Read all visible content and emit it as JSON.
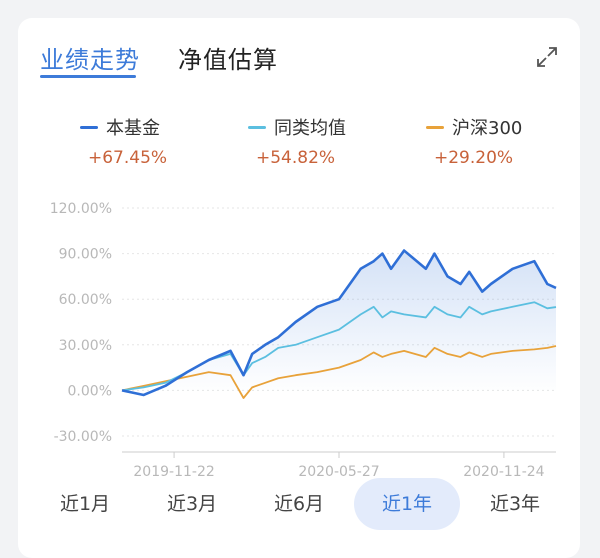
{
  "tabs": {
    "performance": "业绩走势",
    "nav_estimate": "净值估算"
  },
  "legend": [
    {
      "name": "本基金",
      "value": "+67.45%",
      "color": "#2f6fd6"
    },
    {
      "name": "同类均值",
      "value": "+54.82%",
      "color": "#5bbfe0"
    },
    {
      "name": "沪深300",
      "value": "+29.20%",
      "color": "#e8a23a"
    }
  ],
  "ranges": [
    "近1月",
    "近3月",
    "近6月",
    "近1年",
    "近3年"
  ],
  "selected_range": "近1年",
  "colors": {
    "accent": "#3d7bd9",
    "value_text": "#c8623a"
  },
  "chart_data": {
    "type": "line",
    "ylim": [
      -30,
      120
    ],
    "yticks": [
      "120.00%",
      "90.00%",
      "60.00%",
      "30.00%",
      "0.00%",
      "-30.00%"
    ],
    "xticks": [
      "2019-11-22",
      "2020-05-27",
      "2020-11-24"
    ],
    "grid": true,
    "x": [
      0,
      0.05,
      0.1,
      0.15,
      0.2,
      0.25,
      0.28,
      0.3,
      0.33,
      0.36,
      0.4,
      0.45,
      0.5,
      0.55,
      0.58,
      0.6,
      0.62,
      0.65,
      0.7,
      0.72,
      0.75,
      0.78,
      0.8,
      0.83,
      0.85,
      0.9,
      0.95,
      0.98,
      1.0
    ],
    "series": [
      {
        "name": "本基金",
        "values": [
          0,
          -3,
          3,
          12,
          20,
          26,
          10,
          24,
          30,
          35,
          45,
          55,
          60,
          80,
          85,
          90,
          80,
          92,
          80,
          90,
          75,
          70,
          78,
          65,
          70,
          80,
          85,
          70,
          67.45
        ]
      },
      {
        "name": "同类均值",
        "values": [
          0,
          2,
          5,
          12,
          20,
          24,
          10,
          18,
          22,
          28,
          30,
          35,
          40,
          50,
          55,
          48,
          52,
          50,
          48,
          55,
          50,
          48,
          55,
          50,
          52,
          55,
          58,
          54,
          54.82
        ]
      },
      {
        "name": "沪深300",
        "values": [
          0,
          3,
          6,
          9,
          12,
          10,
          -5,
          2,
          5,
          8,
          10,
          12,
          15,
          20,
          25,
          22,
          24,
          26,
          22,
          28,
          24,
          22,
          25,
          22,
          24,
          26,
          27,
          28,
          29.2
        ]
      }
    ]
  }
}
